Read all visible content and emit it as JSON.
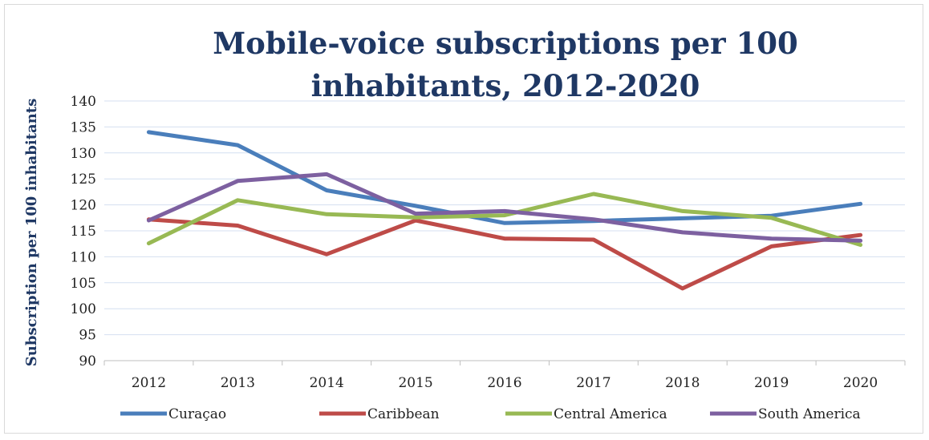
{
  "chart_data": {
    "type": "line",
    "title_lines": [
      "Mobile-voice subscriptions per 100",
      "inhabitants, 2012-2020"
    ],
    "ylabel": "Subscription per 100 inhabitants",
    "xlabel": "",
    "categories": [
      "2012",
      "2013",
      "2014",
      "2015",
      "2016",
      "2017",
      "2018",
      "2019",
      "2020"
    ],
    "ylim": [
      90,
      140
    ],
    "yticks": [
      "90",
      "95",
      "100",
      "105",
      "110",
      "115",
      "120",
      "125",
      "130",
      "135",
      "140"
    ],
    "grid": true,
    "legend_position": "bottom",
    "series": [
      {
        "name": "Curaçao",
        "color": "#4a7ebb",
        "values": [
          134,
          131.5,
          122.8,
          119.8,
          116.5,
          116.9,
          117.4,
          117.9,
          120.2
        ]
      },
      {
        "name": "Caribbean",
        "color": "#be4b48",
        "values": [
          117.2,
          116,
          110.5,
          117,
          113.5,
          113.3,
          103.9,
          112,
          114.2
        ]
      },
      {
        "name": "Central America",
        "color": "#98b954",
        "values": [
          112.6,
          120.9,
          118.2,
          117.6,
          118,
          122.1,
          118.8,
          117.5,
          112.3
        ]
      },
      {
        "name": "South America",
        "color": "#7d60a0",
        "values": [
          117,
          124.6,
          125.9,
          118.3,
          118.8,
          117.2,
          114.7,
          113.5,
          113.1
        ]
      }
    ]
  }
}
